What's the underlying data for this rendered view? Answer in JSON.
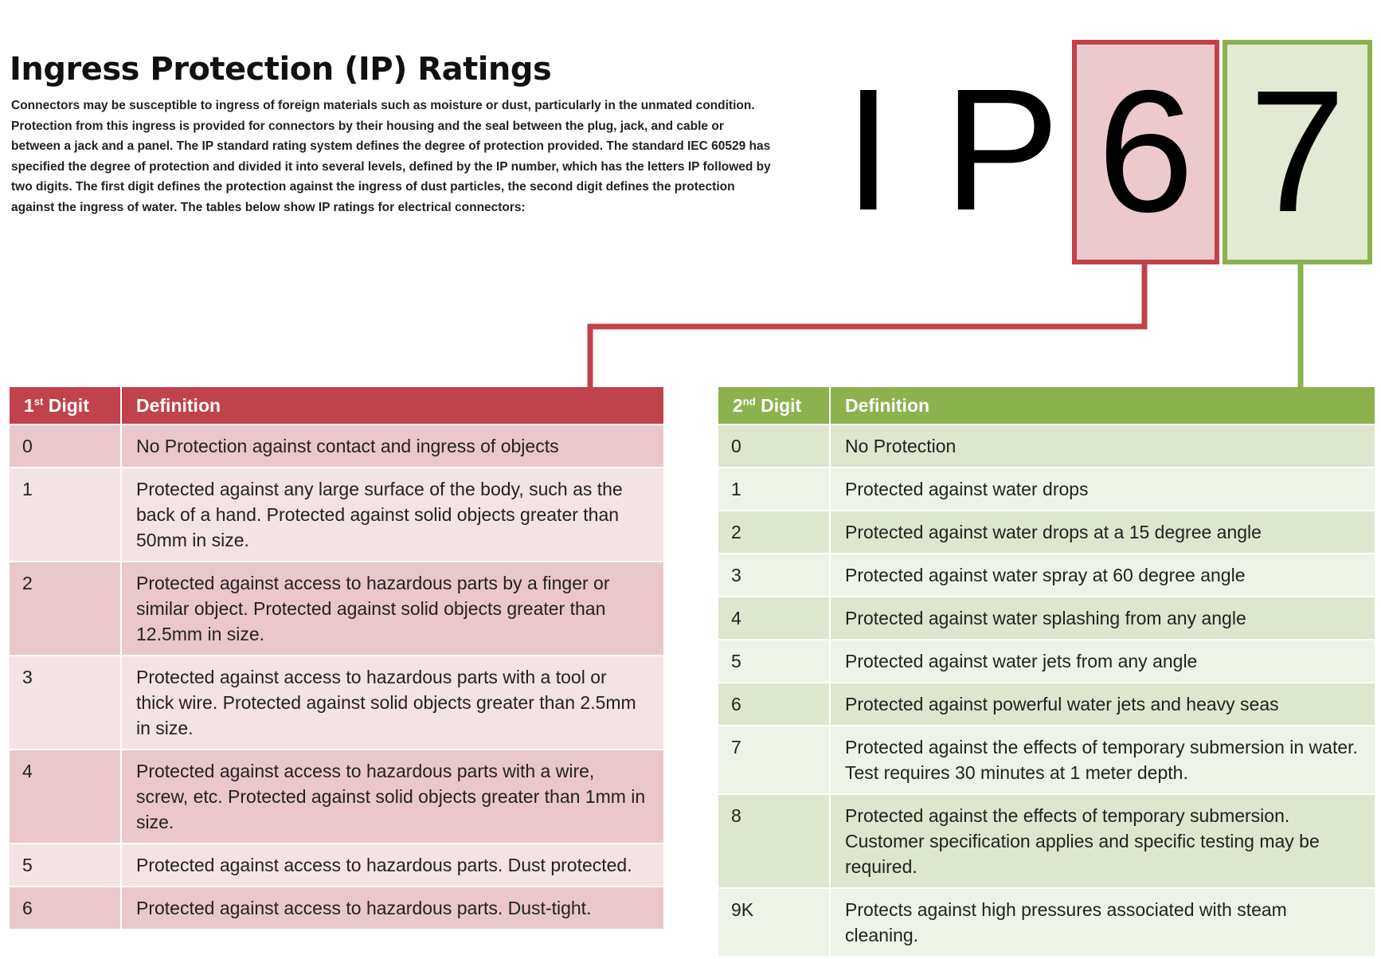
{
  "header": {
    "title": "Ingress Protection (IP) Ratings",
    "intro": "Connectors may be susceptible to ingress of foreign materials such as moisture or dust, particularly in the unmated condition.  Protection from this ingress is provided for connectors by their housing and the seal between the plug, jack, and cable or between a jack and a panel. The IP standard rating system defines the degree of protection provided. The standard IEC 60529 has specified the degree of protection and divided it into several levels, defined by the IP number, which has the letters IP followed by two digits.  The first digit defines the protection against the ingress of dust particles, the second digit defines the protection against the ingress of water. The tables below show IP ratings for electrical connectors:"
  },
  "ip_code": {
    "letter1": "I",
    "letter2": "P",
    "digit1": "6",
    "digit2": "7"
  },
  "colors": {
    "red_accent": "#c0424b",
    "green_accent": "#8bb24f"
  },
  "first_digit_table": {
    "header_digit": "1",
    "header_digit_sup": "st",
    "header_digit_suffix": " Digit",
    "header_definition": "Definition",
    "rows": [
      {
        "digit": "0",
        "definition": "No Protection against contact and ingress of objects"
      },
      {
        "digit": "1",
        "definition": "Protected against any large surface of the body, such as the back of a hand.  Protected against solid objects greater than 50mm in size."
      },
      {
        "digit": "2",
        "definition": "Protected against access to hazardous parts by a finger or similar object.  Protected against solid objects greater than 12.5mm in size."
      },
      {
        "digit": "3",
        "definition": "Protected against access to hazardous parts with a tool or thick wire.  Protected against solid objects greater than 2.5mm in size."
      },
      {
        "digit": "4",
        "definition": "Protected against access to hazardous parts with a wire, screw, etc.  Protected against solid objects greater than 1mm in size."
      },
      {
        "digit": "5",
        "definition": "Protected against access to hazardous parts.  Dust protected."
      },
      {
        "digit": "6",
        "definition": "Protected against access to hazardous parts.  Dust-tight."
      }
    ]
  },
  "second_digit_table": {
    "header_digit": "2",
    "header_digit_sup": "nd",
    "header_digit_suffix": " Digit",
    "header_definition": "Definition",
    "rows": [
      {
        "digit": "0",
        "definition": "No Protection"
      },
      {
        "digit": "1",
        "definition": "Protected against water drops"
      },
      {
        "digit": "2",
        "definition": "Protected against water drops at a 15 degree angle"
      },
      {
        "digit": "3",
        "definition": "Protected against water spray at 60 degree angle"
      },
      {
        "digit": "4",
        "definition": "Protected against water splashing from any angle"
      },
      {
        "digit": "5",
        "definition": "Protected against water jets from any angle"
      },
      {
        "digit": "6",
        "definition": "Protected against powerful water jets and heavy seas"
      },
      {
        "digit": "7",
        "definition": "Protected against the effects of temporary submersion in water.  Test requires 30 minutes at 1 meter depth."
      },
      {
        "digit": "8",
        "definition": "Protected against the effects of temporary submersion.  Customer specification applies and specific testing may be required."
      },
      {
        "digit": "9K",
        "definition": "Protects against high pressures associated with steam cleaning."
      }
    ]
  }
}
